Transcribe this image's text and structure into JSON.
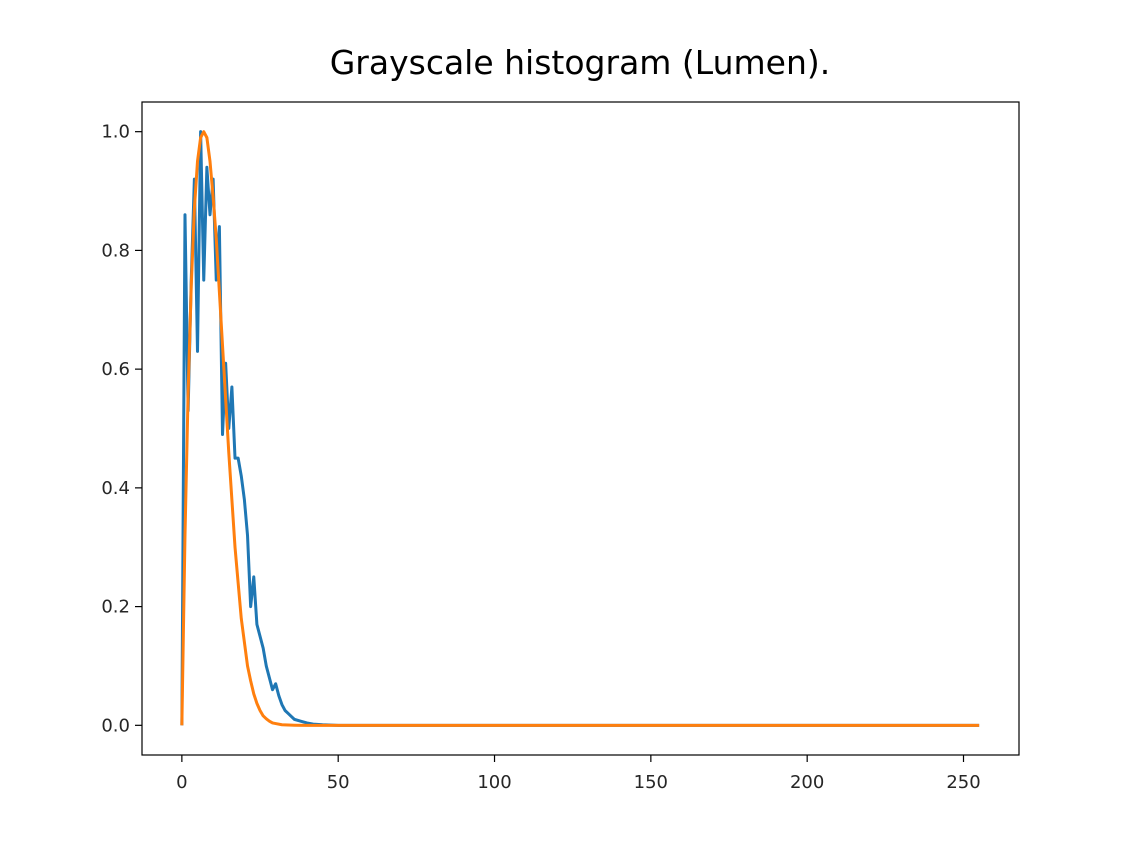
{
  "chart_data": {
    "type": "line",
    "title": "Grayscale histogram (Lumen).",
    "xlabel": "",
    "ylabel": "",
    "xlim": [
      -12.75,
      267.75
    ],
    "ylim": [
      -0.05,
      1.05
    ],
    "xticks": [
      0,
      50,
      100,
      150,
      200,
      250
    ],
    "yticks": [
      0.0,
      0.2,
      0.4,
      0.6,
      0.8,
      1.0
    ],
    "xtick_labels": [
      "0",
      "50",
      "100",
      "150",
      "200",
      "250"
    ],
    "ytick_labels": [
      "0.0",
      "0.2",
      "0.4",
      "0.6",
      "0.8",
      "1.0"
    ],
    "grid": false,
    "legend": "none",
    "series": [
      {
        "color": "#1f77b4",
        "x": [
          0,
          1,
          2,
          3,
          4,
          5,
          6,
          7,
          8,
          9,
          10,
          11,
          12,
          13,
          14,
          15,
          16,
          17,
          18,
          19,
          20,
          21,
          22,
          23,
          24,
          25,
          26,
          27,
          28,
          29,
          30,
          31,
          32,
          33,
          34,
          35,
          36,
          38,
          40,
          42,
          45,
          50,
          60,
          80,
          100,
          150,
          200,
          255
        ],
        "y": [
          0.0,
          0.86,
          0.53,
          0.75,
          0.92,
          0.63,
          1.0,
          0.75,
          0.94,
          0.86,
          0.92,
          0.75,
          0.84,
          0.49,
          0.61,
          0.5,
          0.57,
          0.45,
          0.45,
          0.42,
          0.38,
          0.32,
          0.2,
          0.25,
          0.17,
          0.15,
          0.13,
          0.1,
          0.08,
          0.06,
          0.07,
          0.05,
          0.035,
          0.025,
          0.02,
          0.015,
          0.01,
          0.007,
          0.004,
          0.002,
          0.001,
          0.0,
          0.0,
          0.0,
          0.0,
          0.0,
          0.0,
          0.0
        ]
      },
      {
        "color": "#ff7f0e",
        "x": [
          0,
          1,
          2,
          3,
          4,
          5,
          6,
          7,
          8,
          9,
          10,
          11,
          12,
          13,
          14,
          15,
          16,
          17,
          18,
          19,
          20,
          21,
          22,
          23,
          24,
          25,
          26,
          27,
          28,
          29,
          30,
          32,
          34,
          36,
          40,
          50,
          100,
          150,
          200,
          255
        ],
        "y": [
          0.0,
          0.32,
          0.56,
          0.74,
          0.87,
          0.95,
          0.99,
          1.0,
          0.99,
          0.95,
          0.89,
          0.82,
          0.73,
          0.64,
          0.55,
          0.46,
          0.38,
          0.3,
          0.24,
          0.18,
          0.14,
          0.1,
          0.075,
          0.053,
          0.037,
          0.025,
          0.016,
          0.011,
          0.007,
          0.004,
          0.003,
          0.001,
          0.0005,
          0.0002,
          0.0,
          0.0,
          0.0,
          0.0,
          0.0,
          0.0
        ]
      }
    ]
  }
}
